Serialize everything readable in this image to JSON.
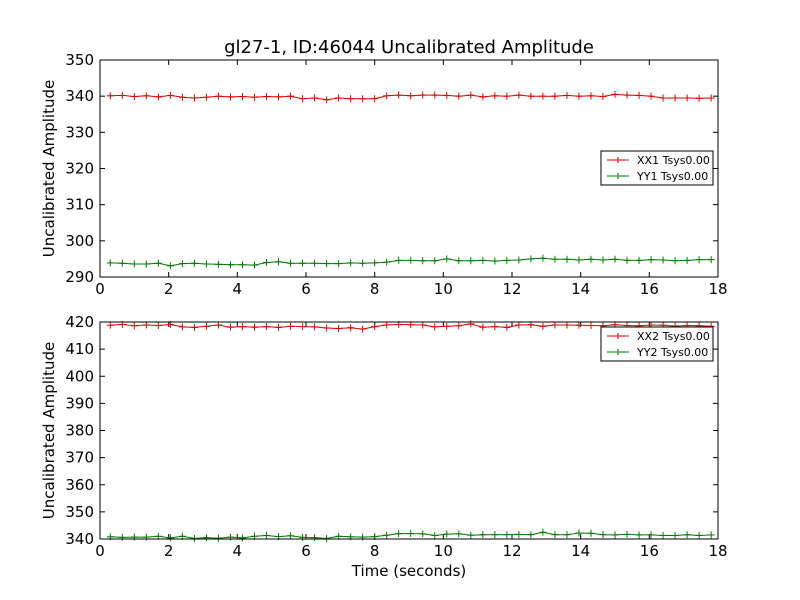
{
  "title": "gl27-1, ID:46044 Uncalibrated Amplitude",
  "xlabel": "Time (seconds)",
  "colors": {
    "red": "#e00000",
    "green": "#007a00"
  },
  "chart_data": [
    {
      "type": "line",
      "ylabel": "Uncalibrated Amplitude",
      "xlim": [
        0,
        18
      ],
      "ylim": [
        290,
        350
      ],
      "xticks": [
        0,
        2,
        4,
        6,
        8,
        10,
        12,
        14,
        16,
        18
      ],
      "yticks": [
        290,
        300,
        310,
        320,
        330,
        340,
        350
      ],
      "legend_position": "right",
      "x": [
        0.3,
        0.65,
        1.0,
        1.35,
        1.7,
        2.05,
        2.4,
        2.75,
        3.1,
        3.45,
        3.8,
        4.15,
        4.5,
        4.85,
        5.2,
        5.55,
        5.9,
        6.25,
        6.6,
        6.95,
        7.3,
        7.65,
        8.0,
        8.35,
        8.7,
        9.05,
        9.4,
        9.75,
        10.1,
        10.45,
        10.8,
        11.15,
        11.5,
        11.85,
        12.2,
        12.55,
        12.9,
        13.25,
        13.6,
        13.95,
        14.3,
        14.65,
        15.0,
        15.35,
        15.7,
        16.05,
        16.4,
        16.75,
        17.1,
        17.45,
        17.8
      ],
      "series": [
        {
          "name": "XX1 Tsys0.00",
          "color": "#e00000",
          "values": [
            340.1,
            340.2,
            339.9,
            340.1,
            339.8,
            340.2,
            339.7,
            339.5,
            339.7,
            340.0,
            339.8,
            339.9,
            339.7,
            339.9,
            339.8,
            340.0,
            339.3,
            339.5,
            339.0,
            339.5,
            339.3,
            339.3,
            339.3,
            340.1,
            340.3,
            340.1,
            340.3,
            340.3,
            340.2,
            340.0,
            340.3,
            339.8,
            340.1,
            340.0,
            340.3,
            340.0,
            340.0,
            340.0,
            340.2,
            340.0,
            340.1,
            339.9,
            340.5,
            340.3,
            340.2,
            340.0,
            339.5,
            339.5,
            339.5,
            339.4,
            339.5
          ]
        },
        {
          "name": "YY1 Tsys0.00",
          "color": "#007a00",
          "values": [
            293.9,
            293.8,
            293.6,
            293.6,
            293.8,
            293.1,
            293.7,
            293.8,
            293.6,
            293.5,
            293.4,
            293.4,
            293.3,
            294.0,
            294.2,
            293.8,
            293.8,
            293.8,
            293.7,
            293.7,
            293.9,
            293.8,
            293.9,
            294.1,
            294.6,
            294.6,
            294.5,
            294.5,
            295.0,
            294.5,
            294.5,
            294.6,
            294.4,
            294.6,
            294.7,
            295.0,
            295.2,
            294.9,
            294.9,
            294.7,
            294.9,
            294.7,
            294.9,
            294.6,
            294.6,
            294.8,
            294.7,
            294.5,
            294.6,
            294.8,
            294.8
          ]
        }
      ]
    },
    {
      "type": "line",
      "ylabel": "Uncalibrated Amplitude",
      "xlabel": "Time (seconds)",
      "xlim": [
        0,
        18
      ],
      "ylim": [
        340,
        420
      ],
      "xticks": [
        0,
        2,
        4,
        6,
        8,
        10,
        12,
        14,
        16,
        18
      ],
      "yticks": [
        340,
        350,
        360,
        370,
        380,
        390,
        400,
        410,
        420
      ],
      "legend_position": "top-right",
      "x": [
        0.3,
        0.65,
        1.0,
        1.35,
        1.7,
        2.05,
        2.4,
        2.75,
        3.1,
        3.45,
        3.8,
        4.15,
        4.5,
        4.85,
        5.2,
        5.55,
        5.9,
        6.25,
        6.6,
        6.95,
        7.3,
        7.65,
        8.0,
        8.35,
        8.7,
        9.05,
        9.4,
        9.75,
        10.1,
        10.45,
        10.8,
        11.15,
        11.5,
        11.85,
        12.2,
        12.55,
        12.9,
        13.25,
        13.6,
        13.95,
        14.3,
        14.65,
        15.0,
        15.35,
        15.7,
        16.05,
        16.4,
        16.75,
        17.1,
        17.45,
        17.8
      ],
      "series": [
        {
          "name": "XX2 Tsys0.00",
          "color": "#e00000",
          "values": [
            418.8,
            419.1,
            418.6,
            418.9,
            418.7,
            419.1,
            418.2,
            418.0,
            418.4,
            418.9,
            418.1,
            418.3,
            418.1,
            418.3,
            418.0,
            418.4,
            418.3,
            418.2,
            417.8,
            417.6,
            417.9,
            417.4,
            418.3,
            418.9,
            419.1,
            419.0,
            418.9,
            418.2,
            418.4,
            418.6,
            419.3,
            418.1,
            418.3,
            418.0,
            418.9,
            419.0,
            418.4,
            418.9,
            418.9,
            418.8,
            418.7,
            418.6,
            419.0,
            418.7,
            418.6,
            418.9,
            418.8,
            418.5,
            418.7,
            418.6,
            418.4
          ]
        },
        {
          "name": "YY2 Tsys0.00",
          "color": "#007a00",
          "values": [
            340.8,
            340.6,
            340.7,
            340.7,
            341.0,
            340.4,
            341.0,
            340.2,
            340.5,
            340.3,
            340.7,
            340.4,
            341.0,
            341.3,
            340.9,
            341.2,
            340.6,
            340.5,
            340.2,
            341.0,
            340.8,
            340.7,
            340.9,
            341.4,
            342.0,
            342.0,
            341.9,
            341.3,
            341.8,
            341.9,
            341.4,
            341.6,
            341.6,
            341.6,
            341.7,
            341.6,
            342.5,
            341.6,
            341.6,
            342.2,
            342.1,
            341.6,
            341.5,
            341.7,
            341.5,
            341.5,
            341.3,
            341.3,
            341.6,
            341.3,
            341.5
          ]
        }
      ]
    }
  ]
}
